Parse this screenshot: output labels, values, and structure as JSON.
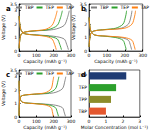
{
  "chart_data": [
    {
      "type": "line",
      "title": "a",
      "xlabel": "Capacity (mAh g⁻¹)",
      "ylabel": "Voltage (V)",
      "xlim": [
        0,
        300
      ],
      "xticks": [
        0,
        100,
        200,
        300
      ],
      "ylim": [
        0,
        3.5
      ],
      "yticks": [
        0,
        1,
        2,
        3
      ],
      "legend": "top",
      "series": [
        {
          "name": "TBP",
          "color": "#7f7f7f",
          "x": [
            0,
            10,
            30,
            100,
            200,
            260,
            280,
            290,
            null,
            0,
            10,
            30,
            100,
            200,
            260,
            275,
            285
          ],
          "values": [
            0.2,
            1.2,
            1.4,
            1.5,
            1.6,
            1.9,
            2.5,
            3.0,
            null,
            2.6,
            1.6,
            1.3,
            1.2,
            1.1,
            0.9,
            0.5,
            0.1
          ]
        },
        {
          "name": "TEP",
          "color": "#2ca02c",
          "x": [
            0,
            10,
            30,
            90,
            170,
            220,
            240,
            250,
            null,
            0,
            10,
            30,
            90,
            170,
            220,
            235,
            245
          ],
          "values": [
            0.2,
            1.2,
            1.4,
            1.5,
            1.6,
            1.9,
            2.5,
            3.0,
            null,
            2.6,
            1.6,
            1.3,
            1.2,
            1.1,
            0.9,
            0.5,
            0.1
          ]
        },
        {
          "name": "TAP",
          "color": "#ff7f0e",
          "x": [
            0,
            10,
            30,
            80,
            150,
            190,
            210,
            220,
            null,
            0,
            10,
            30,
            80,
            150,
            190,
            205,
            215
          ],
          "values": [
            0.2,
            1.2,
            1.4,
            1.5,
            1.6,
            1.9,
            2.5,
            3.0,
            null,
            2.6,
            1.6,
            1.3,
            1.2,
            1.1,
            0.9,
            0.5,
            0.1
          ]
        }
      ]
    },
    {
      "type": "line",
      "title": "b",
      "xlabel": "Capacity (mAh g⁻¹)",
      "ylabel": "Voltage (V)",
      "xlim": [
        0,
        300
      ],
      "xticks": [
        0,
        100,
        200,
        300
      ],
      "ylim": [
        0,
        3.5
      ],
      "yticks": [
        0,
        1,
        2,
        3
      ],
      "legend": "top",
      "series": [
        {
          "name": "TBP",
          "color": "#7f7f7f",
          "x": [
            0,
            10,
            30,
            100,
            180,
            220,
            235,
            240,
            null,
            0,
            10,
            30,
            100,
            180,
            220,
            232,
            238
          ],
          "values": [
            0.3,
            1.3,
            1.5,
            1.6,
            1.7,
            2.0,
            2.6,
            3.0,
            null,
            2.5,
            1.5,
            1.2,
            1.1,
            1.0,
            0.8,
            0.4,
            0.1
          ]
        },
        {
          "name": "TEP",
          "color": "#2ca02c",
          "x": [
            0,
            10,
            30,
            90,
            150,
            190,
            205,
            210,
            null,
            0,
            10,
            30,
            90,
            150,
            190,
            202,
            208
          ],
          "values": [
            0.3,
            1.3,
            1.5,
            1.6,
            1.7,
            2.0,
            2.6,
            3.0,
            null,
            2.5,
            1.5,
            1.2,
            1.1,
            1.0,
            0.8,
            0.4,
            0.1
          ]
        },
        {
          "name": "TAP",
          "color": "#ff7f0e",
          "x": [
            0,
            10,
            30,
            110,
            200,
            240,
            255,
            260,
            null,
            0,
            10,
            30,
            110,
            200,
            240,
            252,
            258
          ],
          "values": [
            0.3,
            1.3,
            1.5,
            1.6,
            1.7,
            2.0,
            2.6,
            3.0,
            null,
            2.5,
            1.5,
            1.2,
            1.1,
            1.0,
            0.8,
            0.4,
            0.1
          ]
        }
      ]
    },
    {
      "type": "line",
      "title": "c",
      "xlabel": "Capacity (mAh g⁻¹)",
      "ylabel": "Voltage (V)",
      "xlim": [
        0,
        300
      ],
      "xticks": [
        0,
        100,
        200,
        300
      ],
      "ylim": [
        0,
        3.5
      ],
      "yticks": [
        0,
        1,
        2,
        3
      ],
      "legend": "top",
      "series": [
        {
          "name": "TBP",
          "color": "#7f7f7f",
          "x": [
            0,
            5,
            20,
            100,
            200,
            250,
            265,
            270,
            null,
            0,
            5,
            20,
            100,
            200,
            250,
            262,
            268
          ],
          "values": [
            0.1,
            1.4,
            1.6,
            1.7,
            1.8,
            2.1,
            2.7,
            3.0,
            null,
            2.7,
            1.4,
            1.1,
            1.0,
            0.9,
            0.7,
            0.3,
            0.05
          ]
        },
        {
          "name": "TEP",
          "color": "#2ca02c",
          "x": [
            0,
            5,
            20,
            90,
            170,
            210,
            225,
            230,
            null,
            0,
            5,
            20,
            90,
            170,
            210,
            222,
            228
          ],
          "values": [
            0.1,
            1.4,
            1.6,
            1.7,
            1.8,
            2.1,
            2.7,
            3.0,
            null,
            2.7,
            1.4,
            1.1,
            1.0,
            0.9,
            0.7,
            0.3,
            0.05
          ]
        },
        {
          "name": "TAP",
          "color": "#ff7f0e",
          "x": [
            0,
            5,
            20,
            80,
            150,
            185,
            196,
            200,
            null,
            0,
            5,
            20,
            80,
            150,
            185,
            194,
            198
          ],
          "values": [
            0.1,
            1.4,
            1.6,
            1.7,
            1.8,
            2.1,
            2.7,
            3.0,
            null,
            2.7,
            1.4,
            1.1,
            1.0,
            0.9,
            0.7,
            0.3,
            0.05
          ]
        }
      ]
    },
    {
      "type": "bar",
      "title": "d",
      "orientation": "horizontal",
      "xlabel": "Molar Concentration (mol L⁻¹)",
      "categories": [
        "TMP",
        "TEP",
        "TPP",
        "TBP"
      ],
      "values": [
        2.2,
        1.6,
        1.3,
        1.0
      ],
      "colors": [
        "#1f3b73",
        "#2ca02c",
        "#8c8c2a",
        "#e4572e"
      ],
      "xlim": [
        0,
        3
      ],
      "xticks": [
        0,
        1,
        2,
        3
      ]
    }
  ]
}
